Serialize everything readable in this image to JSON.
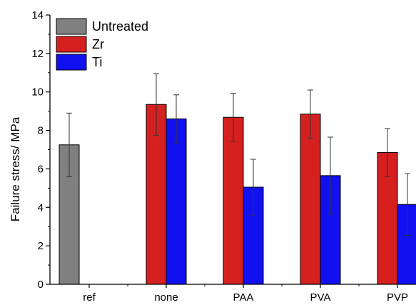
{
  "chart_data": {
    "type": "bar",
    "ylabel": "Failure stress/ MPa",
    "xlabel": "",
    "ylim": [
      0,
      14
    ],
    "yticks": [
      0,
      2,
      4,
      6,
      8,
      10,
      12,
      14
    ],
    "categories": [
      "ref",
      "none",
      "PAA",
      "PVA",
      "PVP"
    ],
    "series": [
      {
        "name": "Untreated",
        "color": "#808080",
        "values": [
          7.25,
          null,
          null,
          null,
          null
        ],
        "errors": [
          1.65,
          null,
          null,
          null,
          null
        ]
      },
      {
        "name": "Zr",
        "color": "#d62020",
        "values": [
          null,
          9.35,
          8.68,
          8.85,
          6.85
        ],
        "errors": [
          null,
          1.6,
          1.25,
          1.25,
          1.25
        ]
      },
      {
        "name": "Ti",
        "color": "#1010f0",
        "values": [
          null,
          8.6,
          5.05,
          5.65,
          4.15
        ],
        "errors": [
          null,
          1.25,
          1.45,
          2.0,
          1.6
        ]
      }
    ],
    "legend_position": "top-left",
    "grid": false
  }
}
